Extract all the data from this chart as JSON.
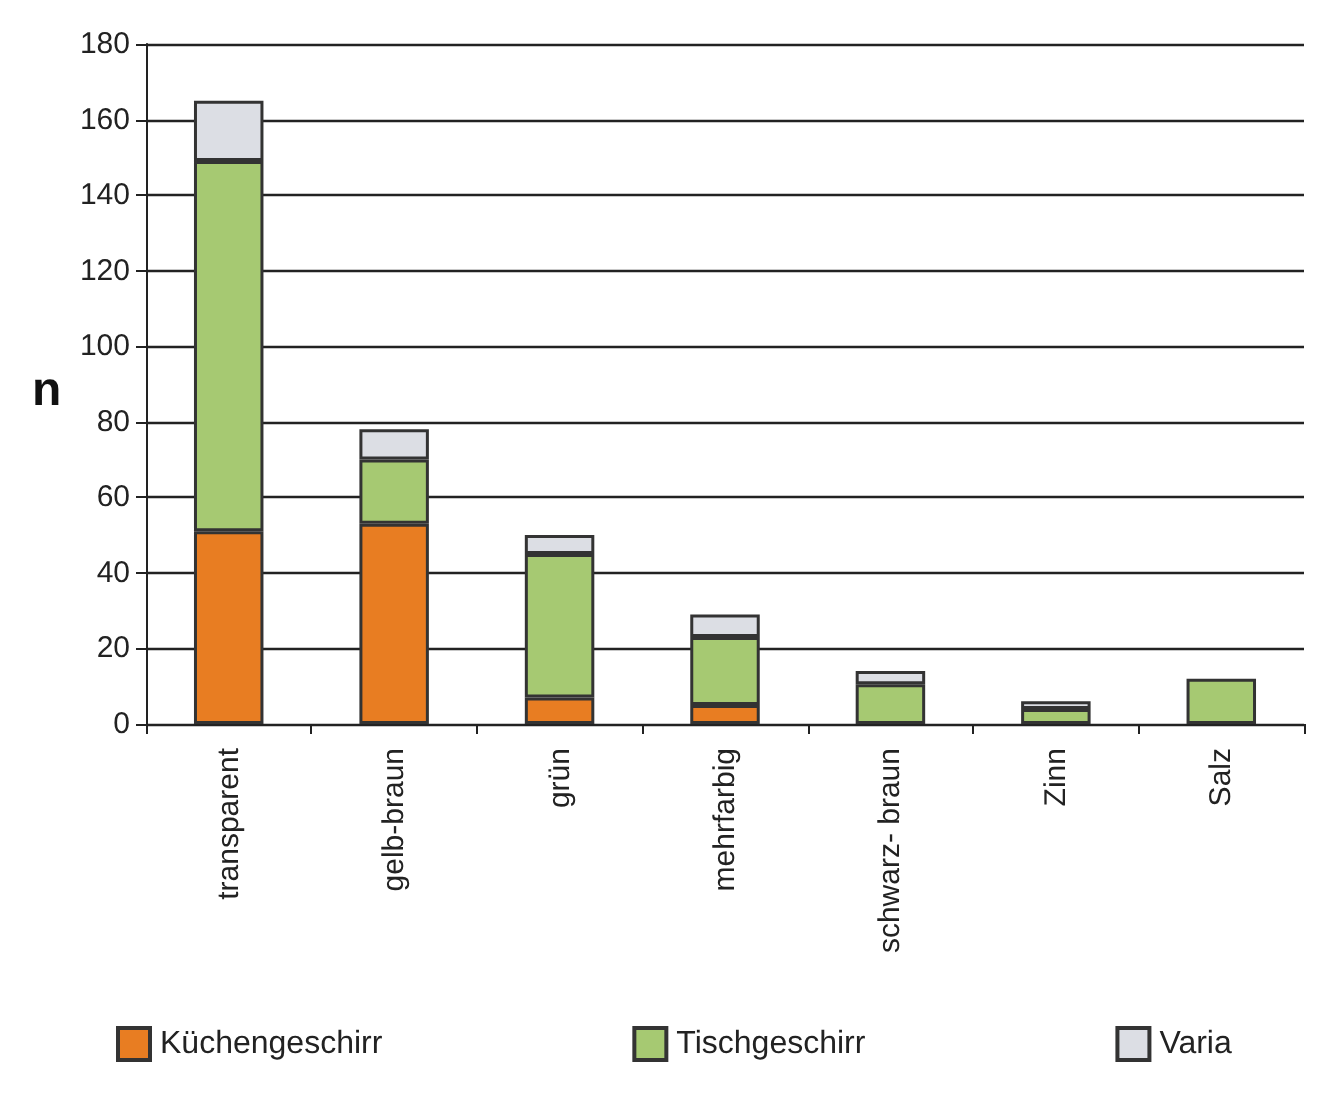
{
  "chart_data": {
    "type": "bar",
    "stacked": true,
    "ylabel": "n",
    "categories": [
      "transparent",
      "gelb-braun",
      "grün",
      "mehrfarbig",
      "schwarz- braun",
      "Zinn",
      "Salz"
    ],
    "series": [
      {
        "name": "Küchengeschirr",
        "color": "#e87d22",
        "values": [
          51,
          53,
          7,
          5,
          0,
          null,
          0
        ]
      },
      {
        "name": "Tischgeschirr",
        "color": "#a6c972",
        "values": [
          98,
          17,
          38,
          18,
          10.5,
          4,
          12
        ]
      },
      {
        "name": "Varia",
        "color": "#dcdee4",
        "values": [
          16,
          8,
          5,
          6,
          3.5,
          2,
          0
        ]
      }
    ],
    "ylim": [
      0,
      180
    ],
    "yticks": [
      0,
      20,
      40,
      60,
      80,
      100,
      120,
      140,
      160,
      180
    ],
    "grid": "y",
    "legend": "bottom"
  }
}
